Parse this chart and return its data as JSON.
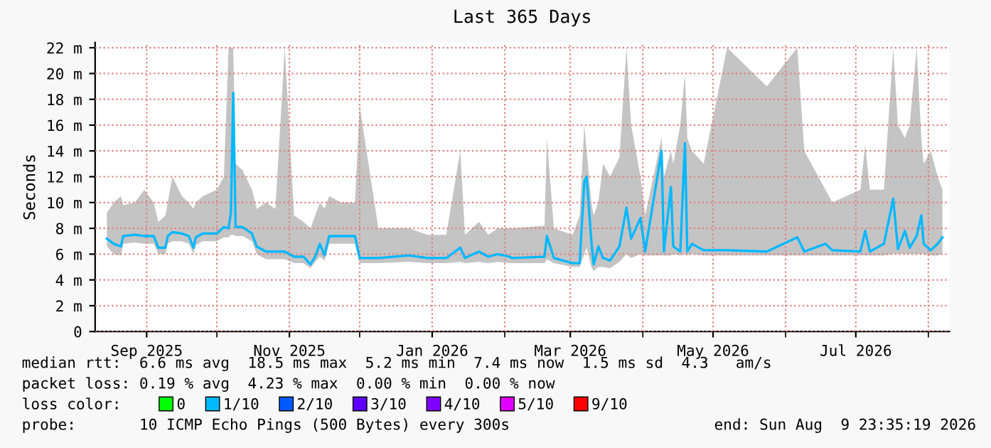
{
  "chart_data": {
    "type": "line",
    "title": "Last 365 Days",
    "ylabel": "Seconds",
    "x": [
      "2025-08-15",
      "2025-08-18",
      "2025-08-21",
      "2025-08-22",
      "2025-08-27",
      "2025-08-31",
      "2025-09-04",
      "2025-09-06",
      "2025-09-09",
      "2025-09-10",
      "2025-09-12",
      "2025-09-16",
      "2025-09-19",
      "2025-09-21",
      "2025-09-22",
      "2025-09-25",
      "2025-10-01",
      "2025-10-04",
      "2025-10-06",
      "2025-10-07",
      "2025-10-08",
      "2025-10-09",
      "2025-10-12",
      "2025-10-16",
      "2025-10-18",
      "2025-10-22",
      "2025-10-26",
      "2025-10-30",
      "2025-11-03",
      "2025-11-07",
      "2025-11-10",
      "2025-11-12",
      "2025-11-14",
      "2025-11-16",
      "2025-11-18",
      "2025-11-23",
      "2025-11-29",
      "2025-12-01",
      "2025-12-09",
      "2025-12-22",
      "2025-12-30",
      "2026-01-07",
      "2026-01-13",
      "2026-01-15",
      "2026-01-21",
      "2026-01-25",
      "2026-01-29",
      "2026-02-03",
      "2026-02-04",
      "2026-02-18",
      "2026-02-19",
      "2026-02-22",
      "2026-03-02",
      "2026-03-05",
      "2026-03-07",
      "2026-03-08",
      "2026-03-10",
      "2026-03-11",
      "2026-03-13",
      "2026-03-15",
      "2026-03-18",
      "2026-03-22",
      "2026-03-25",
      "2026-03-27",
      "2026-03-31",
      "2026-04-02",
      "2026-04-09",
      "2026-04-10",
      "2026-04-13",
      "2026-04-14",
      "2026-04-17",
      "2026-04-19",
      "2026-04-20",
      "2026-04-22",
      "2026-04-27",
      "2026-05-07",
      "2026-05-24",
      "2026-06-06",
      "2026-06-09",
      "2026-06-18",
      "2026-06-21",
      "2026-07-03",
      "2026-07-05",
      "2026-07-07",
      "2026-07-13",
      "2026-07-17",
      "2026-07-19",
      "2026-07-22",
      "2026-07-24",
      "2026-07-27",
      "2026-07-29",
      "2026-07-30",
      "2026-08-02",
      "2026-08-05",
      "2026-08-07"
    ],
    "series": [
      {
        "color": "#00b8ff",
        "values": [
          7.2,
          6.8,
          6.6,
          7.4,
          7.5,
          7.4,
          7.4,
          6.5,
          6.5,
          7.4,
          7.7,
          7.6,
          7.4,
          6.5,
          7.3,
          7.6,
          7.6,
          8.1,
          8.0,
          9.2,
          18.5,
          8.1,
          8.1,
          7.6,
          6.6,
          6.2,
          6.2,
          6.2,
          5.8,
          5.8,
          5.2,
          5.8,
          6.8,
          5.9,
          7.4,
          7.4,
          7.4,
          5.7,
          5.7,
          5.9,
          5.7,
          5.7,
          6.5,
          5.7,
          6.2,
          5.8,
          6.0,
          5.8,
          5.7,
          5.8,
          7.4,
          5.7,
          5.3,
          5.3,
          11.6,
          12.0,
          7.0,
          5.2,
          6.6,
          5.7,
          5.5,
          6.6,
          9.6,
          7.2,
          8.8,
          6.2,
          14.0,
          6.2,
          11.2,
          6.6,
          6.2,
          14.6,
          6.2,
          6.8,
          6.3,
          6.3,
          6.2,
          7.3,
          6.2,
          6.8,
          6.3,
          6.2,
          7.8,
          6.2,
          6.8,
          10.3,
          6.4,
          7.8,
          6.5,
          7.4,
          9.0,
          6.8,
          6.3,
          6.8,
          7.3
        ],
        "lower": [
          6.6,
          6.0,
          5.9,
          6.8,
          6.9,
          6.8,
          6.8,
          6.0,
          6.0,
          6.8,
          7.0,
          7.0,
          6.8,
          6.0,
          6.7,
          7.0,
          7.0,
          7.3,
          7.3,
          7.5,
          7.5,
          7.4,
          7.4,
          7.0,
          6.0,
          5.6,
          5.6,
          5.6,
          5.3,
          5.3,
          4.9,
          5.4,
          5.8,
          5.5,
          6.8,
          6.8,
          6.8,
          5.3,
          5.3,
          5.4,
          5.3,
          5.3,
          5.4,
          5.3,
          5.4,
          5.3,
          5.4,
          5.3,
          5.3,
          5.3,
          5.6,
          5.3,
          5.0,
          5.0,
          6.0,
          6.5,
          5.0,
          4.7,
          5.0,
          5.0,
          4.9,
          5.4,
          6.0,
          5.7,
          6.0,
          5.9,
          5.9,
          5.9,
          5.9,
          6.0,
          5.9,
          6.0,
          5.9,
          6.0,
          5.9,
          5.9,
          5.9,
          5.9,
          5.9,
          5.9,
          5.9,
          5.9,
          5.9,
          5.9,
          5.9,
          6.0,
          6.0,
          6.0,
          6.0,
          6.0,
          6.0,
          6.0,
          5.9,
          5.9,
          6.0
        ],
        "upper": [
          9.2,
          10.0,
          10.5,
          9.8,
          10.0,
          11.0,
          10.0,
          8.5,
          9.0,
          10.0,
          12.0,
          10.5,
          10.0,
          9.5,
          10.0,
          10.5,
          11.0,
          12.0,
          22.0,
          22.0,
          22.0,
          13.0,
          12.5,
          11.0,
          9.5,
          10.0,
          9.5,
          22.0,
          9.0,
          8.5,
          8.0,
          9.0,
          10.0,
          9.5,
          10.5,
          10.0,
          10.0,
          17.5,
          8.0,
          8.0,
          7.5,
          7.5,
          14.0,
          7.5,
          8.5,
          7.5,
          8.0,
          8.0,
          8.0,
          8.2,
          15.0,
          8.0,
          7.5,
          9.0,
          16.0,
          14.0,
          10.0,
          9.0,
          10.0,
          13.0,
          12.0,
          13.5,
          22.0,
          16.0,
          12.0,
          9.0,
          15.0,
          12.0,
          14.0,
          13.0,
          16.0,
          20.0,
          15.0,
          14.0,
          13.0,
          22.0,
          19.0,
          22.0,
          14.0,
          11.0,
          10.0,
          11.0,
          14.5,
          11.0,
          11.0,
          22.0,
          16.0,
          15.0,
          16.0,
          22.0,
          15.0,
          13.0,
          14.0,
          12.0,
          11.0
        ]
      },
      {
        "name": "0",
        "color": "#00ff00",
        "values": [
          null,
          null,
          null,
          null,
          null,
          null,
          null,
          null,
          null,
          null,
          null,
          null,
          null,
          null,
          null,
          null,
          null,
          null,
          null,
          null,
          null,
          null,
          null,
          null,
          null,
          null,
          null,
          null,
          null,
          null,
          null,
          null,
          null,
          null,
          null,
          null,
          null,
          null,
          null,
          null,
          null,
          null,
          null,
          null,
          null,
          null,
          null,
          null,
          null,
          null,
          null,
          null,
          null,
          null,
          null,
          null,
          null,
          null,
          null,
          null,
          null,
          null,
          null,
          null,
          null,
          null,
          null,
          null,
          null,
          null,
          null,
          null,
          null,
          null,
          null,
          null,
          null,
          null,
          null,
          null,
          null,
          null,
          null,
          null,
          null,
          null,
          null,
          null,
          null,
          null,
          null,
          null,
          null,
          null,
          null
        ]
      },
      {
        "name": "1/10",
        "color": "#00b8ff",
        "values": [
          null,
          null,
          null,
          null,
          null,
          null,
          null,
          null,
          null,
          null,
          null,
          null,
          null,
          null,
          null,
          null,
          null,
          null,
          null,
          null,
          null,
          null,
          null,
          null,
          null,
          null,
          null,
          null,
          null,
          null,
          null,
          null,
          null,
          null,
          null,
          null,
          null,
          null,
          null,
          null,
          null,
          null,
          null,
          null,
          null,
          null,
          null,
          null,
          null,
          null,
          null,
          null,
          null,
          null,
          null,
          null,
          null,
          null,
          null,
          null,
          null,
          null,
          null,
          null,
          null,
          null,
          null,
          null,
          null,
          null,
          null,
          null,
          null,
          null,
          null,
          null,
          null,
          null,
          null,
          null,
          null,
          null,
          null,
          null,
          null,
          null,
          null,
          null,
          null,
          null,
          null,
          null,
          null,
          null,
          null
        ]
      },
      {
        "name": "2/10",
        "color": "#0059ff",
        "values": [
          null,
          null,
          null,
          null,
          null,
          null,
          null,
          null,
          null,
          null,
          null,
          null,
          null,
          null,
          null,
          null,
          null,
          null,
          null,
          null,
          null,
          null,
          null,
          null,
          null,
          null,
          null,
          null,
          null,
          null,
          null,
          null,
          null,
          null,
          null,
          null,
          null,
          null,
          null,
          null,
          null,
          null,
          null,
          null,
          null,
          null,
          null,
          null,
          null,
          null,
          null,
          null,
          null,
          null,
          null,
          null,
          null,
          null,
          null,
          null,
          null,
          null,
          null,
          null,
          null,
          null,
          null,
          null,
          null,
          null,
          null,
          null,
          null,
          null,
          null,
          null,
          null,
          null,
          null,
          null,
          null,
          null,
          null,
          null,
          null,
          null,
          null,
          null,
          null,
          null,
          null,
          null,
          null,
          null,
          null
        ]
      },
      {
        "name": "3/10",
        "color": "#5e00ff",
        "values": [
          null,
          null,
          null,
          null,
          null,
          null,
          null,
          null,
          null,
          null,
          null,
          null,
          null,
          null,
          null,
          null,
          null,
          null,
          null,
          null,
          null,
          null,
          null,
          null,
          null,
          null,
          null,
          null,
          null,
          null,
          null,
          null,
          null,
          null,
          null,
          null,
          null,
          null,
          null,
          null,
          null,
          null,
          null,
          null,
          null,
          null,
          null,
          null,
          null,
          null,
          null,
          null,
          null,
          null,
          null,
          null,
          null,
          null,
          null,
          null,
          null,
          null,
          null,
          null,
          null,
          null,
          null,
          null,
          null,
          null,
          null,
          null,
          null,
          null,
          null,
          null,
          null,
          null,
          null,
          null,
          null,
          null,
          null,
          null,
          null,
          null,
          null,
          null,
          null,
          null,
          null,
          null,
          null,
          null,
          null
        ]
      },
      {
        "name": "4/10",
        "color": "#7e00ff",
        "values": [
          null,
          null,
          null,
          null,
          null,
          null,
          null,
          null,
          null,
          null,
          null,
          null,
          null,
          null,
          null,
          null,
          null,
          null,
          null,
          null,
          null,
          null,
          null,
          null,
          null,
          null,
          null,
          null,
          null,
          null,
          null,
          null,
          null,
          null,
          null,
          null,
          null,
          null,
          null,
          null,
          null,
          null,
          null,
          null,
          null,
          null,
          null,
          null,
          null,
          null,
          null,
          null,
          null,
          null,
          null,
          null,
          null,
          null,
          null,
          null,
          null,
          null,
          null,
          null,
          null,
          null,
          null,
          null,
          null,
          null,
          null,
          null,
          null,
          null,
          null,
          null,
          null,
          null,
          null,
          null,
          null,
          null,
          null,
          null,
          null,
          null,
          null,
          null,
          null,
          null,
          null,
          null,
          null,
          null,
          null
        ]
      },
      {
        "name": "5/10",
        "color": "#dd00ff",
        "values": [
          null,
          null,
          null,
          null,
          null,
          null,
          null,
          null,
          null,
          null,
          null,
          null,
          null,
          null,
          null,
          null,
          null,
          null,
          null,
          null,
          null,
          null,
          null,
          null,
          null,
          null,
          null,
          null,
          null,
          null,
          null,
          null,
          null,
          null,
          null,
          null,
          null,
          null,
          null,
          null,
          null,
          null,
          null,
          null,
          null,
          null,
          null,
          null,
          null,
          null,
          null,
          null,
          null,
          null,
          null,
          null,
          null,
          null,
          null,
          null,
          null,
          null,
          null,
          null,
          null,
          null,
          null,
          null,
          null,
          null,
          null,
          null,
          null,
          null,
          null,
          null,
          null,
          null,
          null,
          null,
          null,
          null,
          null,
          null,
          null,
          null,
          null,
          null,
          null,
          null,
          null,
          null,
          null,
          null,
          null
        ]
      },
      {
        "name": "9/10",
        "color": "#ff0000",
        "values": [
          null,
          null,
          null,
          null,
          null,
          null,
          null,
          null,
          null,
          null,
          null,
          null,
          null,
          null,
          null,
          null,
          null,
          null,
          null,
          null,
          null,
          null,
          null,
          null,
          null,
          null,
          null,
          null,
          null,
          null,
          null,
          null,
          null,
          null,
          null,
          null,
          null,
          null,
          null,
          null,
          null,
          null,
          null,
          null,
          null,
          null,
          null,
          null,
          null,
          null,
          null,
          null,
          null,
          null,
          null,
          null,
          null,
          null,
          null,
          null,
          null,
          null,
          null,
          null,
          null,
          null,
          null,
          null,
          null,
          null,
          null,
          null,
          null,
          null,
          null,
          null,
          null,
          null,
          null,
          null,
          null,
          null,
          null,
          null,
          null,
          null,
          null,
          null,
          null,
          null,
          null,
          null,
          null,
          null,
          null
        ]
      }
    ],
    "legend": "bottom",
    "legend_title": "loss color:",
    "xlim": [
      "2025-08-09T23:35",
      "2026-08-09T23:35"
    ],
    "xticks": [
      {
        "value": "2025-09-01",
        "label": "Sep 2025"
      },
      {
        "value": "2025-10-01",
        "label": null
      },
      {
        "value": "2025-11-01",
        "label": "Nov 2025"
      },
      {
        "value": "2025-12-01",
        "label": null
      },
      {
        "value": "2026-01-01",
        "label": "Jan 2026"
      },
      {
        "value": "2026-02-01",
        "label": null
      },
      {
        "value": "2026-03-01",
        "label": "Mar 2026"
      },
      {
        "value": "2026-04-01",
        "label": null
      },
      {
        "value": "2026-05-01",
        "label": "May 2026"
      },
      {
        "value": "2026-06-01",
        "label": null
      },
      {
        "value": "2026-07-01",
        "label": "Jul 2026"
      },
      {
        "value": "2026-08-01",
        "label": null
      }
    ],
    "ylim": [
      0,
      22.4
    ],
    "yticks": [
      0,
      {
        "value": 2,
        "label": "2 m"
      },
      {
        "value": 4,
        "label": "4 m"
      },
      {
        "value": 6,
        "label": "6 m"
      },
      {
        "value": 8,
        "label": "8 m"
      },
      {
        "value": 10,
        "label": "10 m"
      },
      {
        "value": 12,
        "label": "12 m"
      },
      {
        "value": 14,
        "label": "14 m"
      },
      {
        "value": 16,
        "label": "16 m"
      },
      {
        "value": 18,
        "label": "18 m"
      },
      {
        "value": 20,
        "label": "20 m"
      },
      {
        "value": 22,
        "label": "22 m"
      }
    ],
    "grid": true,
    "annotations": [
      "median rtt:  6.6 ms avg  18.5 ms max  5.2 ms min  7.4 ms now  1.5 ms sd  4.3   am/s",
      "packet loss: 0.19 % avg  4.23 % max  0.00 % min  0.00 % now",
      "probe:       10 ICMP Echo Pings (500 Bytes) every 300s",
      "end: Sun Aug  9 23:35:19 2026"
    ]
  }
}
